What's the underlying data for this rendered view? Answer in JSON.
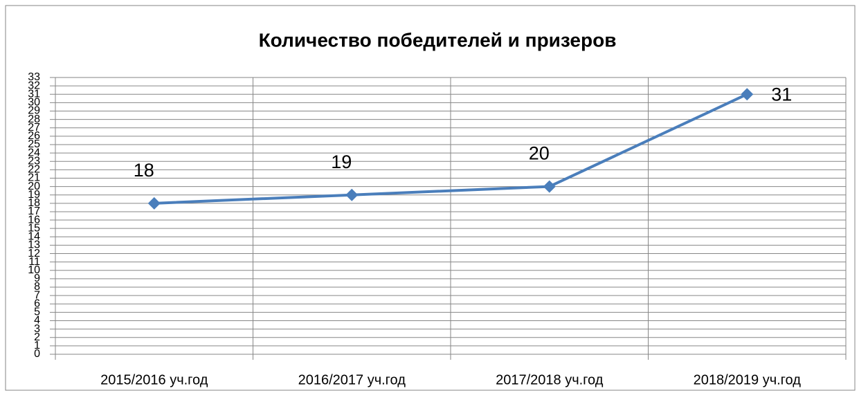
{
  "chart_data": {
    "type": "line",
    "title": "Количество победителей и призеров",
    "categories": [
      "2015/2016 уч.год",
      "2016/2017 уч.год",
      "2017/2018 уч.год",
      "2018/2019 уч.год"
    ],
    "series": [
      {
        "name": "Количество победителей и призеров",
        "color": "#4a7ebb",
        "values": [
          18,
          19,
          20,
          31
        ]
      }
    ],
    "ylim": [
      0,
      33
    ],
    "yticks": [
      0,
      1,
      2,
      3,
      4,
      5,
      6,
      7,
      8,
      9,
      10,
      11,
      12,
      13,
      14,
      15,
      16,
      17,
      18,
      19,
      20,
      21,
      22,
      23,
      24,
      25,
      26,
      27,
      28,
      29,
      30,
      31,
      32,
      33
    ],
    "grid": true
  }
}
